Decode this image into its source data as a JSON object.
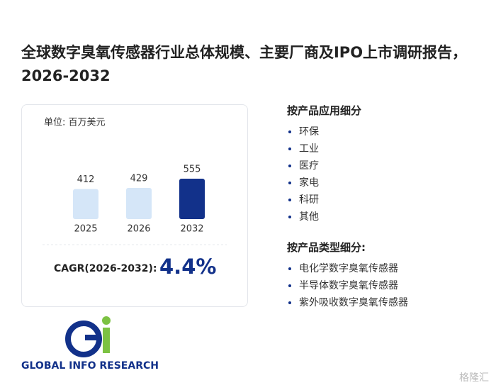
{
  "header": {
    "title": "全球数字臭氧传感器行业总体规模、主要厂商及IPO上市调研报告，2026-2032"
  },
  "chart_data": {
    "type": "bar",
    "unit_label": "单位: 百万美元",
    "categories": [
      "2025",
      "2026",
      "2032"
    ],
    "values": [
      412,
      429,
      555
    ],
    "colors": [
      "#d5e6f8",
      "#d5e6f8",
      "#12318a"
    ],
    "ylim": [
      0,
      555
    ],
    "cagr_label": "CAGR(2026-2032):",
    "cagr_value": "4.4%"
  },
  "lists": [
    {
      "heading": "按产品应用细分",
      "items": [
        "环保",
        "工业",
        "医疗",
        "家电",
        "科研",
        "其他"
      ]
    },
    {
      "heading": "按产品类型细分:",
      "items": [
        "电化学数字臭氧传感器",
        "半导体数字臭氧传感器",
        "紫外吸收数字臭氧传感器"
      ]
    }
  ],
  "logo": {
    "text": "GLOBAL INFO RESEARCH"
  },
  "watermark": {
    "text": "格隆汇"
  }
}
